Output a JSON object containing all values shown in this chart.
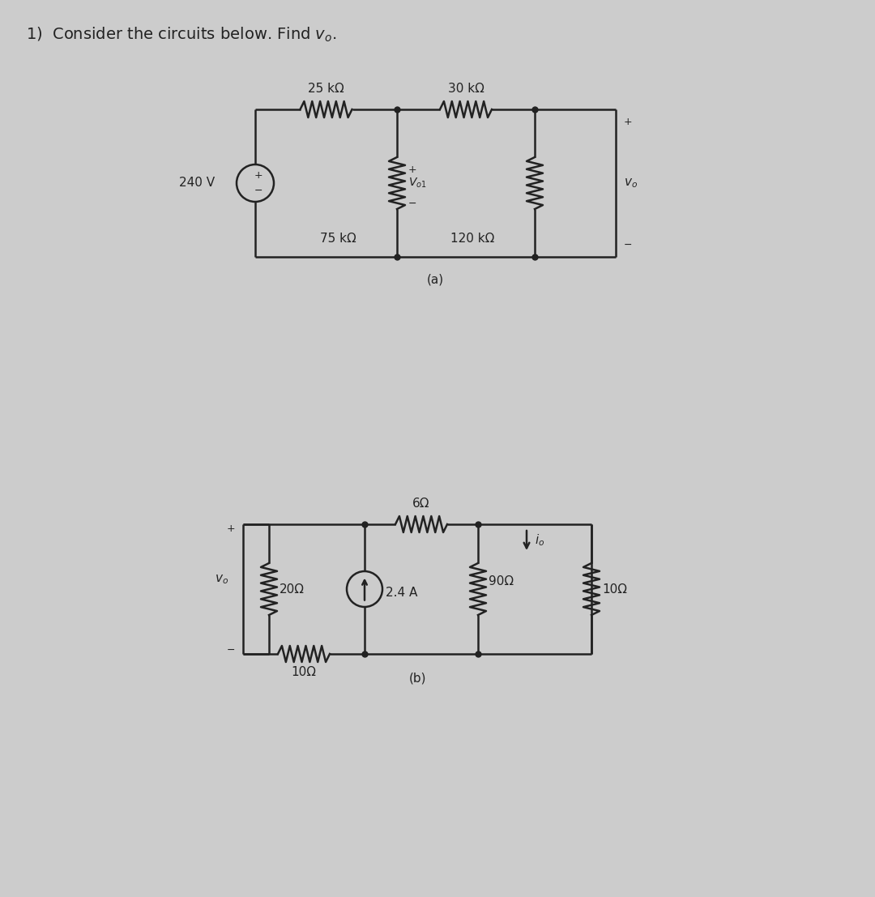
{
  "title": "1)  Consider the circuits below. Find $v_o$.",
  "title_fontsize": 14,
  "bg_color": "#cccccc",
  "line_color": "#222222",
  "label_fontsize": 11,
  "small_fontsize": 9,
  "circuit_a_label": "(a)",
  "circuit_b_label": "(b)",
  "vs_label": "240 V",
  "r1_label": "25 kΩ",
  "r2_label": "30 kΩ",
  "r3_label": "75 kΩ",
  "r4_label": "120 kΩ",
  "vo1_label": "$V_{o1}$",
  "vo_a_label": "$v_o$",
  "r5_label": "20Ω",
  "r6_label": "6Ω",
  "r7_label": "90Ω",
  "r8_label": "10Ω",
  "r9_label": "10Ω",
  "is_label": "2.4 A",
  "io_label": "$i_o$",
  "vo_b_label": "$v_o$"
}
